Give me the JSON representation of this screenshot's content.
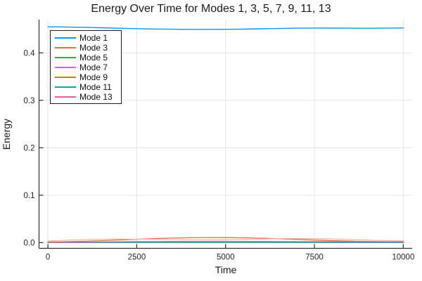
{
  "title": "Energy Over Time for Modes 1, 3, 5, 7, 9, 11, 13",
  "axes": {
    "xlabel": "Time",
    "ylabel": "Energy"
  },
  "colors": {
    "grid": "#e4e4e4",
    "spine": "#2a2e33",
    "tick_label": "#262626",
    "title_text": "#1a1a1a",
    "legend_border": "#1c1c1c",
    "background": "#ffffff"
  },
  "chart_data": {
    "type": "line",
    "title": "Energy Over Time for Modes 1, 3, 5, 7, 9, 11, 13",
    "xlabel": "Time",
    "ylabel": "Energy",
    "xlim": [
      -250,
      10250
    ],
    "ylim": [
      -0.012,
      0.47
    ],
    "x_ticks": [
      0,
      2500,
      5000,
      7500,
      10000
    ],
    "x_tick_labels": [
      "0",
      "2500",
      "5000",
      "7500",
      "10000"
    ],
    "y_ticks": [
      0.0,
      0.1,
      0.2,
      0.3,
      0.4
    ],
    "y_tick_labels": [
      "0.0",
      "0.1",
      "0.2",
      "0.3",
      "0.4"
    ],
    "grid": true,
    "legend_position": "top-left",
    "x": [
      0,
      500,
      1000,
      1500,
      2000,
      2500,
      3000,
      3500,
      4000,
      4500,
      5000,
      5500,
      6000,
      6500,
      7000,
      7500,
      8000,
      8500,
      9000,
      9500,
      10000
    ],
    "series": [
      {
        "name": "Mode 1",
        "color": "#009AFA",
        "values": [
          0.4551,
          0.4546,
          0.4539,
          0.4529,
          0.4519,
          0.451,
          0.4503,
          0.4498,
          0.4496,
          0.4495,
          0.4497,
          0.45,
          0.4507,
          0.4514,
          0.4521,
          0.4524,
          0.4523,
          0.4521,
          0.4519,
          0.4521,
          0.4526
        ]
      },
      {
        "name": "Mode 3",
        "color": "#E26E47",
        "values": [
          0.0015,
          0.0021,
          0.0029,
          0.0041,
          0.0056,
          0.0071,
          0.0085,
          0.0096,
          0.0104,
          0.0108,
          0.0107,
          0.0102,
          0.0093,
          0.0082,
          0.0069,
          0.0055,
          0.0043,
          0.0032,
          0.0024,
          0.0019,
          0.0017
        ]
      },
      {
        "name": "Mode 5",
        "color": "#3DA44E",
        "values": [
          0.0006,
          0.0006,
          0.0006,
          0.0006,
          0.0006,
          0.0006,
          0.0006,
          0.0006,
          0.0006,
          0.0006,
          0.0006,
          0.0006,
          0.0006,
          0.0006,
          0.0006,
          0.0006,
          0.0006,
          0.0006,
          0.0006,
          0.0006,
          0.0006
        ]
      },
      {
        "name": "Mode 7",
        "color": "#C371D2",
        "values": [
          0.0005,
          0.0005,
          0.0005,
          0.0005,
          0.0005,
          0.0005,
          0.0005,
          0.0005,
          0.0005,
          0.0005,
          0.0005,
          0.0005,
          0.0005,
          0.0005,
          0.0005,
          0.0005,
          0.0005,
          0.0005,
          0.0005,
          0.0005,
          0.0005
        ]
      },
      {
        "name": "Mode 9",
        "color": "#AC8E18",
        "values": [
          0.0007,
          0.0007,
          0.0007,
          0.0007,
          0.0007,
          0.0007,
          0.0007,
          0.0007,
          0.0007,
          0.0007,
          0.0007,
          0.0007,
          0.0007,
          0.0007,
          0.0007,
          0.0007,
          0.0007,
          0.0007,
          0.0007,
          0.0007,
          0.0007
        ]
      },
      {
        "name": "Mode 11",
        "color": "#00AAAE",
        "values": [
          0.0004,
          0.0004,
          0.0004,
          0.0004,
          0.0004,
          0.0004,
          0.0004,
          0.0004,
          0.0004,
          0.0004,
          0.0004,
          0.0004,
          0.0004,
          0.0004,
          0.0004,
          0.0004,
          0.0004,
          0.0004,
          0.0004,
          0.0004,
          0.0004
        ]
      },
      {
        "name": "Mode 13",
        "color": "#ED5E93",
        "values": [
          0.0008,
          0.001,
          0.0013,
          0.0016,
          0.0019,
          0.0022,
          0.0024,
          0.0026,
          0.0027,
          0.0028,
          0.0028,
          0.0027,
          0.0026,
          0.0025,
          0.0024,
          0.0023,
          0.0022,
          0.0021,
          0.002,
          0.002,
          0.0021
        ]
      }
    ],
    "envelopes": [
      {
        "series": "Mode 3",
        "color": "#F0B39A",
        "values": [
          0.0035,
          0.0052,
          0.0065,
          0.0072,
          0.0075,
          0.0074,
          0.007,
          0.0065,
          0.0061,
          0.006,
          0.0062,
          0.0068,
          0.0076,
          0.0084,
          0.0088,
          0.0086,
          0.0078,
          0.0066,
          0.0054,
          0.0044,
          0.0037
        ]
      }
    ]
  }
}
